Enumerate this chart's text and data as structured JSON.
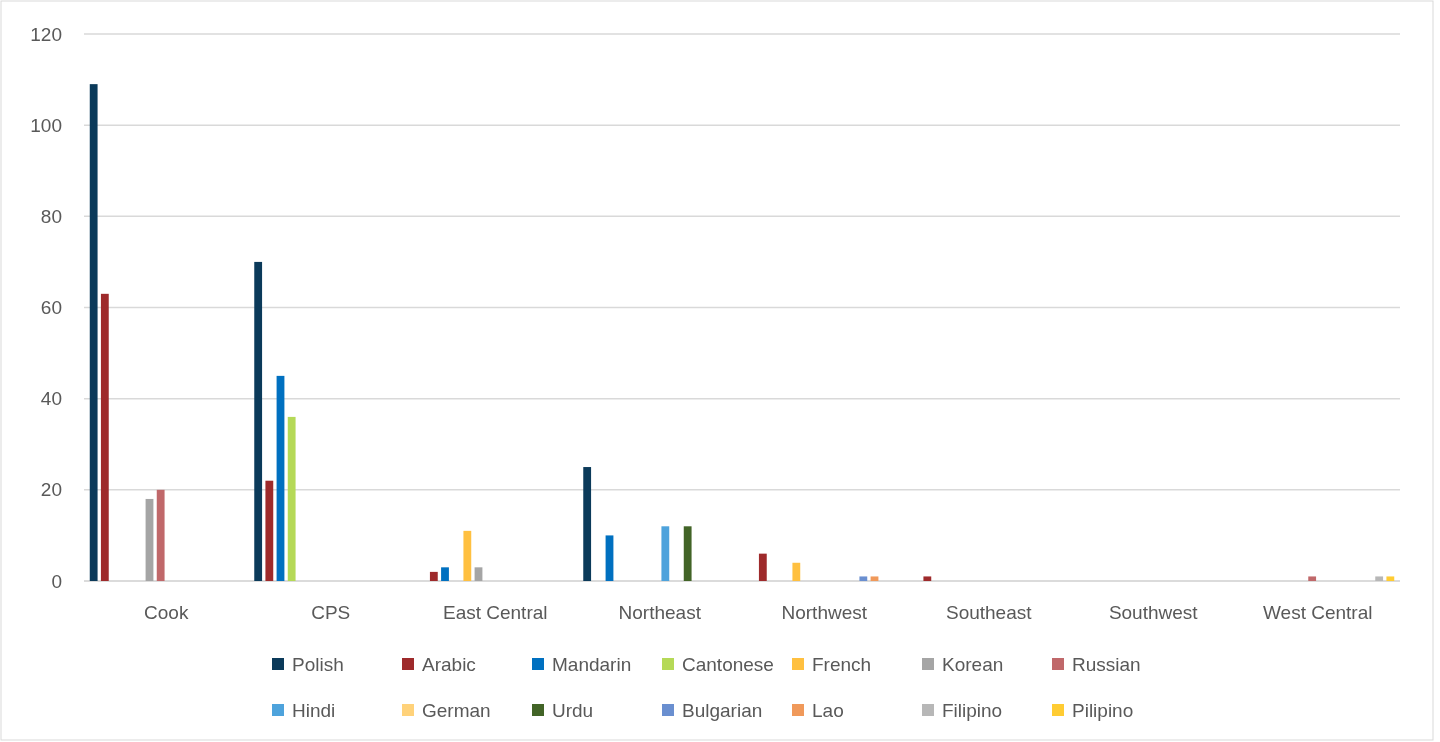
{
  "chart_data": {
    "type": "bar",
    "categories": [
      "Cook",
      "CPS",
      "East Central",
      "Northeast",
      "Northwest",
      "Southeast",
      "Southwest",
      "West Central"
    ],
    "series": [
      {
        "name": "Polish",
        "color": "#0b3a5a",
        "values": [
          109,
          70,
          null,
          25,
          null,
          null,
          null,
          null
        ]
      },
      {
        "name": "Arabic",
        "color": "#9e2a2b",
        "values": [
          63,
          22,
          2,
          null,
          6,
          1,
          null,
          null
        ]
      },
      {
        "name": "Mandarin",
        "color": "#0070c0",
        "values": [
          null,
          45,
          3,
          10,
          null,
          null,
          null,
          null
        ]
      },
      {
        "name": "Cantonese",
        "color": "#b5d957",
        "values": [
          null,
          36,
          null,
          null,
          null,
          null,
          null,
          null
        ]
      },
      {
        "name": "French",
        "color": "#ffc040",
        "values": [
          null,
          null,
          11,
          null,
          4,
          null,
          null,
          null
        ]
      },
      {
        "name": "Korean",
        "color": "#a5a5a5",
        "values": [
          18,
          null,
          3,
          null,
          null,
          null,
          null,
          null
        ]
      },
      {
        "name": "Russian",
        "color": "#c0686a",
        "values": [
          20,
          null,
          null,
          null,
          null,
          null,
          null,
          1
        ]
      },
      {
        "name": "Hindi",
        "color": "#4ea3dc",
        "values": [
          null,
          null,
          null,
          12,
          null,
          null,
          null,
          null
        ]
      },
      {
        "name": "German",
        "color": "#ffd27a",
        "values": [
          null,
          null,
          null,
          null,
          null,
          null,
          null,
          null
        ]
      },
      {
        "name": "Urdu",
        "color": "#426427",
        "values": [
          null,
          null,
          null,
          12,
          null,
          null,
          null,
          null
        ]
      },
      {
        "name": "Bulgarian",
        "color": "#6a8fd0",
        "values": [
          null,
          null,
          null,
          null,
          1,
          null,
          null,
          null
        ]
      },
      {
        "name": "Lao",
        "color": "#f0995a",
        "values": [
          null,
          null,
          null,
          null,
          1,
          null,
          null,
          null
        ]
      },
      {
        "name": "Filipino",
        "color": "#b7b7b7",
        "values": [
          null,
          null,
          null,
          null,
          null,
          null,
          null,
          1
        ]
      },
      {
        "name": "Pilipino",
        "color": "#ffcc33",
        "values": [
          null,
          null,
          null,
          null,
          null,
          null,
          null,
          1
        ]
      }
    ],
    "ylim": [
      0,
      120
    ],
    "yticks": [
      0,
      20,
      40,
      60,
      80,
      100,
      120
    ],
    "grid": "y",
    "legend": "bottom"
  }
}
